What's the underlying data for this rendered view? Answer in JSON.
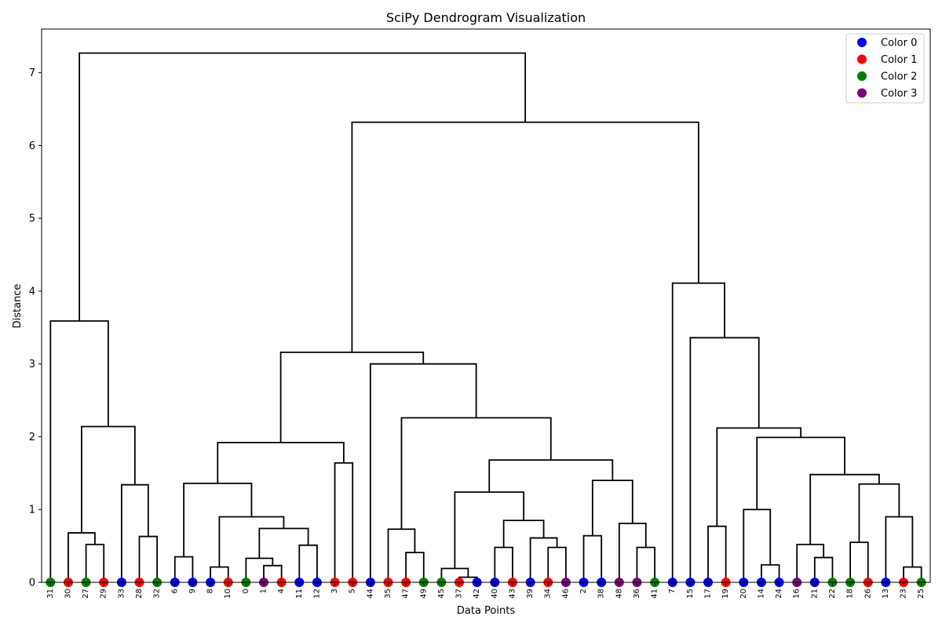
{
  "chart_data": {
    "type": "dendrogram",
    "title": "SciPy Dendrogram Visualization",
    "xlabel": "Data Points",
    "ylabel": "Distance",
    "ylim": [
      0,
      7.6
    ],
    "yticks": [
      "0",
      "1",
      "2",
      "3",
      "4",
      "5",
      "6",
      "7"
    ],
    "leaves": [
      {
        "label": "31",
        "color": 2
      },
      {
        "label": "30",
        "color": 1
      },
      {
        "label": "27",
        "color": 2
      },
      {
        "label": "29",
        "color": 1
      },
      {
        "label": "33",
        "color": 0
      },
      {
        "label": "28",
        "color": 1
      },
      {
        "label": "32",
        "color": 2
      },
      {
        "label": "6",
        "color": 0
      },
      {
        "label": "9",
        "color": 0
      },
      {
        "label": "8",
        "color": 0
      },
      {
        "label": "10",
        "color": 1
      },
      {
        "label": "0",
        "color": 2
      },
      {
        "label": "1",
        "color": 3
      },
      {
        "label": "4",
        "color": 1
      },
      {
        "label": "11",
        "color": 0
      },
      {
        "label": "12",
        "color": 0
      },
      {
        "label": "3",
        "color": 1
      },
      {
        "label": "5",
        "color": 1
      },
      {
        "label": "44",
        "color": 0
      },
      {
        "label": "35",
        "color": 1
      },
      {
        "label": "47",
        "color": 1
      },
      {
        "label": "49",
        "color": 2
      },
      {
        "label": "45",
        "color": 2
      },
      {
        "label": "37",
        "color": 1
      },
      {
        "label": "42",
        "color": 0
      },
      {
        "label": "40",
        "color": 0
      },
      {
        "label": "43",
        "color": 1
      },
      {
        "label": "39",
        "color": 0
      },
      {
        "label": "34",
        "color": 1
      },
      {
        "label": "46",
        "color": 3
      },
      {
        "label": "2",
        "color": 0
      },
      {
        "label": "38",
        "color": 0
      },
      {
        "label": "48",
        "color": 3
      },
      {
        "label": "36",
        "color": 3
      },
      {
        "label": "41",
        "color": 2
      },
      {
        "label": "7",
        "color": 0
      },
      {
        "label": "15",
        "color": 0
      },
      {
        "label": "17",
        "color": 0
      },
      {
        "label": "19",
        "color": 1
      },
      {
        "label": "20",
        "color": 0
      },
      {
        "label": "14",
        "color": 0
      },
      {
        "label": "24",
        "color": 0
      },
      {
        "label": "16",
        "color": 3
      },
      {
        "label": "21",
        "color": 0
      },
      {
        "label": "22",
        "color": 2
      },
      {
        "label": "18",
        "color": 2
      },
      {
        "label": "26",
        "color": 1
      },
      {
        "label": "13",
        "color": 0
      },
      {
        "label": "23",
        "color": 1
      },
      {
        "label": "25",
        "color": 2
      }
    ],
    "merges": [
      {
        "a": "27",
        "b": "29",
        "h": 0.52
      },
      {
        "a": "30",
        "b": "m0",
        "h": 0.68
      },
      {
        "a": "28",
        "b": "32",
        "h": 0.63
      },
      {
        "a": "33",
        "b": "m2",
        "h": 1.34
      },
      {
        "a": "m1",
        "b": "m3",
        "h": 2.14
      },
      {
        "a": "31",
        "b": "m4",
        "h": 3.59
      },
      {
        "a": "6",
        "b": "9",
        "h": 0.35
      },
      {
        "a": "8",
        "b": "10",
        "h": 0.21
      },
      {
        "a": "1",
        "b": "4",
        "h": 0.23
      },
      {
        "a": "0",
        "b": "m8",
        "h": 0.33
      },
      {
        "a": "11",
        "b": "12",
        "h": 0.51
      },
      {
        "a": "m9",
        "b": "m10",
        "h": 0.74
      },
      {
        "a": "m7",
        "b": "m11",
        "h": 0.9
      },
      {
        "a": "m6",
        "b": "m12",
        "h": 1.36
      },
      {
        "a": "3",
        "b": "5",
        "h": 1.64
      },
      {
        "a": "m13",
        "b": "m14",
        "h": 1.92
      },
      {
        "a": "47",
        "b": "49",
        "h": 0.41
      },
      {
        "a": "35",
        "b": "m16",
        "h": 0.73
      },
      {
        "a": "37",
        "b": "42",
        "h": 0.07
      },
      {
        "a": "45",
        "b": "m18",
        "h": 0.19
      },
      {
        "a": "40",
        "b": "43",
        "h": 0.48
      },
      {
        "a": "34",
        "b": "46",
        "h": 0.48
      },
      {
        "a": "39",
        "b": "m21",
        "h": 0.61
      },
      {
        "a": "m20",
        "b": "m22",
        "h": 0.85
      },
      {
        "a": "m19",
        "b": "m23",
        "h": 1.24
      },
      {
        "a": "2",
        "b": "38",
        "h": 0.64
      },
      {
        "a": "36",
        "b": "41",
        "h": 0.48
      },
      {
        "a": "48",
        "b": "m26",
        "h": 0.81
      },
      {
        "a": "m25",
        "b": "m27",
        "h": 1.4
      },
      {
        "a": "m24",
        "b": "m28",
        "h": 1.68
      },
      {
        "a": "m17",
        "b": "m29",
        "h": 2.26
      },
      {
        "a": "44",
        "b": "m30",
        "h": 3.0
      },
      {
        "a": "m15",
        "b": "m31",
        "h": 3.16
      },
      {
        "a": "17",
        "b": "19",
        "h": 0.77
      },
      {
        "a": "14",
        "b": "24",
        "h": 0.24
      },
      {
        "a": "20",
        "b": "m34",
        "h": 1.0
      },
      {
        "a": "21",
        "b": "22",
        "h": 0.34
      },
      {
        "a": "16",
        "b": "m36",
        "h": 0.52
      },
      {
        "a": "18",
        "b": "26",
        "h": 0.55
      },
      {
        "a": "23",
        "b": "25",
        "h": 0.21
      },
      {
        "a": "13",
        "b": "m39",
        "h": 0.9
      },
      {
        "a": "m38",
        "b": "m40",
        "h": 1.35
      },
      {
        "a": "m37",
        "b": "m41",
        "h": 1.48
      },
      {
        "a": "m35",
        "b": "m42",
        "h": 1.99
      },
      {
        "a": "m33",
        "b": "m43",
        "h": 2.12
      },
      {
        "a": "15",
        "b": "m44",
        "h": 3.36
      },
      {
        "a": "7",
        "b": "m45",
        "h": 4.11
      },
      {
        "a": "m32",
        "b": "m46",
        "h": 6.32
      },
      {
        "a": "m5",
        "b": "m47",
        "h": 7.27
      }
    ],
    "legend": {
      "placement": "top-right",
      "entries": [
        {
          "label": "Color 0",
          "color": "#0000ff"
        },
        {
          "label": "Color 1",
          "color": "#ff0000"
        },
        {
          "label": "Color 2",
          "color": "#008000"
        },
        {
          "label": "Color 3",
          "color": "#800080"
        }
      ]
    },
    "grid": false
  }
}
